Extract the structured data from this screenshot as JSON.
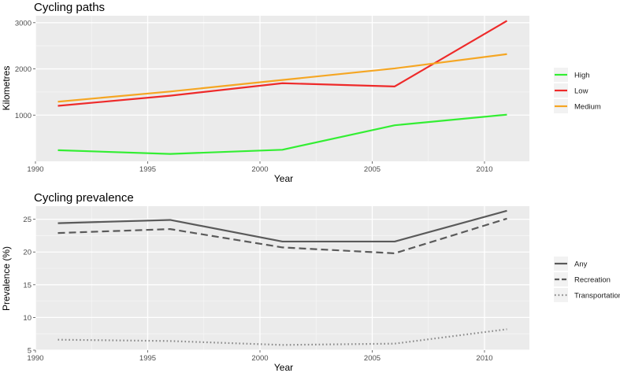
{
  "chart_data": [
    {
      "type": "line",
      "title": "Cycling paths",
      "xlabel": "Year",
      "ylabel": "Kilometres",
      "xlim": [
        1990,
        2012
      ],
      "ylim": [
        0,
        3150
      ],
      "xticks": [
        1990,
        1995,
        2000,
        2005,
        2010
      ],
      "yticks": [
        1000,
        2000,
        3000
      ],
      "x": [
        1991,
        1996,
        2001,
        2006,
        2011
      ],
      "legend_position": "right",
      "grid": true,
      "series": [
        {
          "name": "High",
          "color": "#33ee33",
          "linestyle": "solid",
          "values": [
            240,
            160,
            250,
            780,
            1010
          ]
        },
        {
          "name": "Low",
          "color": "#ee2a2a",
          "linestyle": "solid",
          "values": [
            1200,
            1420,
            1690,
            1620,
            3040
          ]
        },
        {
          "name": "Medium",
          "color": "#f5a623",
          "linestyle": "solid",
          "values": [
            1290,
            1510,
            1760,
            2010,
            2320
          ]
        }
      ]
    },
    {
      "type": "line",
      "title": "Cycling prevalence",
      "xlabel": "Year",
      "ylabel": "Prevalence (%)",
      "xlim": [
        1990,
        2012
      ],
      "ylim": [
        5,
        27
      ],
      "xticks": [
        1990,
        1995,
        2000,
        2005,
        2010
      ],
      "yticks": [
        5,
        10,
        15,
        20,
        25
      ],
      "x": [
        1991,
        1996,
        2001,
        2006,
        2011
      ],
      "legend_position": "right",
      "grid": true,
      "series": [
        {
          "name": "Any",
          "color": "#5a5a5a",
          "linestyle": "solid",
          "values": [
            24.4,
            24.9,
            21.6,
            21.6,
            26.3
          ]
        },
        {
          "name": "Recreation",
          "color": "#5a5a5a",
          "linestyle": "dashed",
          "values": [
            22.9,
            23.5,
            20.7,
            19.8,
            25.1
          ]
        },
        {
          "name": "Transportation",
          "color": "#8a8a8a",
          "linestyle": "dotted",
          "values": [
            6.6,
            6.4,
            5.8,
            6.0,
            8.2
          ]
        }
      ]
    }
  ]
}
